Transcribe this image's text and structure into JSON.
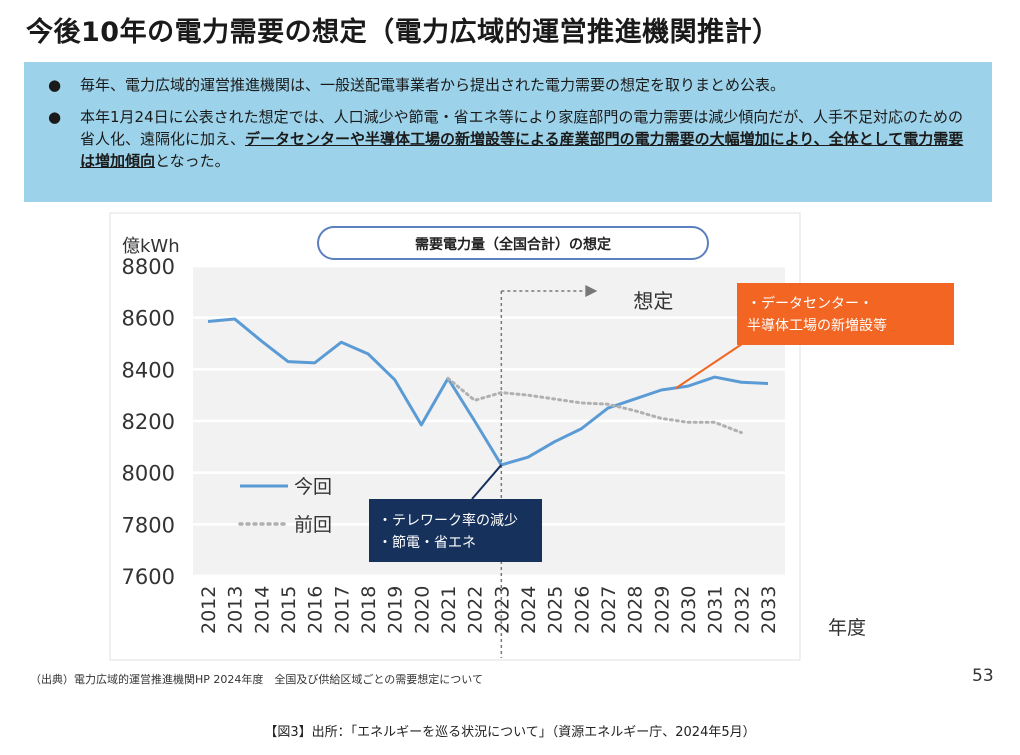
{
  "title": "今後10年の電力需要の想定（電力広域的運営推進機関推計）",
  "summary": {
    "bullets": [
      {
        "segments": [
          {
            "text": "毎年、電力広域的運営推進機関は、一般送配電事業者から提出された電力需要の想定を取りまとめ公表。",
            "emphasis": false
          }
        ]
      },
      {
        "segments": [
          {
            "text": "本年1月24日に公表された想定では、人口減少や節電・省エネ等により家庭部門の電力需要は減少傾向だが、人手不足対応のための省人化、遠隔化に加え、",
            "emphasis": false
          },
          {
            "text": "データセンターや半導体工場の新増設等による産業部門の電力需要の大幅増加により、全体として電力需要は増加傾向",
            "emphasis": true
          },
          {
            "text": "となった。",
            "emphasis": false
          }
        ]
      }
    ]
  },
  "chart_data": {
    "type": "line",
    "title": "需要電力量（全国合計）の想定",
    "ylabel": "億kWh",
    "xlabel": "年度",
    "ylim": [
      7600,
      8800
    ],
    "yticks": [
      7600,
      7800,
      8000,
      8200,
      8400,
      8600,
      8800
    ],
    "categories": [
      "2012",
      "2013",
      "2014",
      "2015",
      "2016",
      "2017",
      "2018",
      "2019",
      "2020",
      "2021",
      "2022",
      "2023",
      "2024",
      "2025",
      "2026",
      "2027",
      "2028",
      "2029",
      "2030",
      "2031",
      "2032",
      "2033"
    ],
    "series": [
      {
        "name": "今回",
        "style": "solid",
        "color": "#5b9bd5",
        "values": [
          8585,
          8595,
          8510,
          8430,
          8425,
          8505,
          8460,
          8360,
          8185,
          8365,
          8200,
          8030,
          8060,
          8120,
          8170,
          8250,
          8285,
          8320,
          8335,
          8370,
          8350,
          8345
        ]
      },
      {
        "name": "前回",
        "style": "dotted",
        "color": "#b0b0b0",
        "values": [
          null,
          null,
          null,
          null,
          null,
          null,
          null,
          null,
          null,
          8365,
          8280,
          8310,
          8300,
          8285,
          8270,
          8265,
          8240,
          8210,
          8195,
          8195,
          8155,
          null
        ]
      }
    ],
    "forecast_start": "2023",
    "forecast_label": "想定",
    "annotations": [
      {
        "text_lines": [
          "・テレワーク率の減少",
          "・節電・省エネ"
        ],
        "background": "#16325c",
        "points_to": "2023"
      },
      {
        "text_lines": [
          "・データセンター・",
          "半導体工場の新増設等"
        ],
        "background": "#f26522",
        "points_to": "2030"
      }
    ],
    "legend": [
      {
        "name": "今回",
        "style": "solid"
      },
      {
        "name": "前回",
        "style": "dotted"
      }
    ],
    "legend_position": "lower-left",
    "grid": true
  },
  "footer": {
    "source": "（出典）電力広域的運営推進機関HP 2024年度　全国及び供給区域ごとの需要想定について",
    "page_number": "53"
  },
  "caption": "【図3】出所：「エネルギーを巡る状況について」（資源エネルギー庁、2024年5月）"
}
